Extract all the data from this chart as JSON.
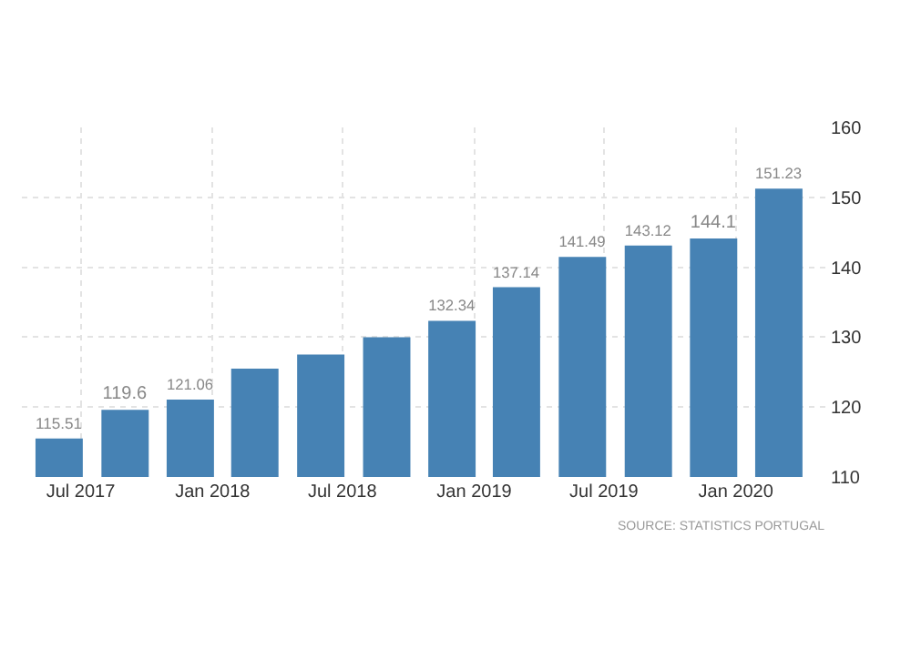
{
  "chart_data": {
    "type": "bar",
    "x": [
      "2017-06",
      "2017-09",
      "2017-12",
      "2018-03",
      "2018-06",
      "2018-09",
      "2018-12",
      "2019-03",
      "2019-06",
      "2019-09",
      "2019-12",
      "2020-03"
    ],
    "values": [
      115.51,
      119.6,
      121.06,
      125.5,
      127.5,
      130,
      132.34,
      137.14,
      141.49,
      143.12,
      144.1,
      151.23
    ],
    "value_labels": [
      "115.51",
      "119.6",
      "121.06",
      null,
      null,
      null,
      "132.34",
      "137.14",
      "141.49",
      "143.12",
      "144.1",
      "151.23"
    ],
    "color": "#4682b4",
    "ylim": [
      110,
      160
    ],
    "yticks": [
      110,
      120,
      130,
      140,
      150,
      160
    ],
    "xlim": [
      "2017-04-10",
      "2020-05-10"
    ],
    "xticks": [
      {
        "value": "2017-07",
        "label": "Jul 2017"
      },
      {
        "value": "2018-01",
        "label": "Jan 2018"
      },
      {
        "value": "2018-07",
        "label": "Jul 2018"
      },
      {
        "value": "2019-01",
        "label": "Jan 2019"
      },
      {
        "value": "2019-07",
        "label": "Jul 2019"
      },
      {
        "value": "2020-01",
        "label": "Jan 2020"
      }
    ],
    "grid": true,
    "annotations": [
      "SOURCE: STATISTICS PORTUGAL"
    ]
  }
}
